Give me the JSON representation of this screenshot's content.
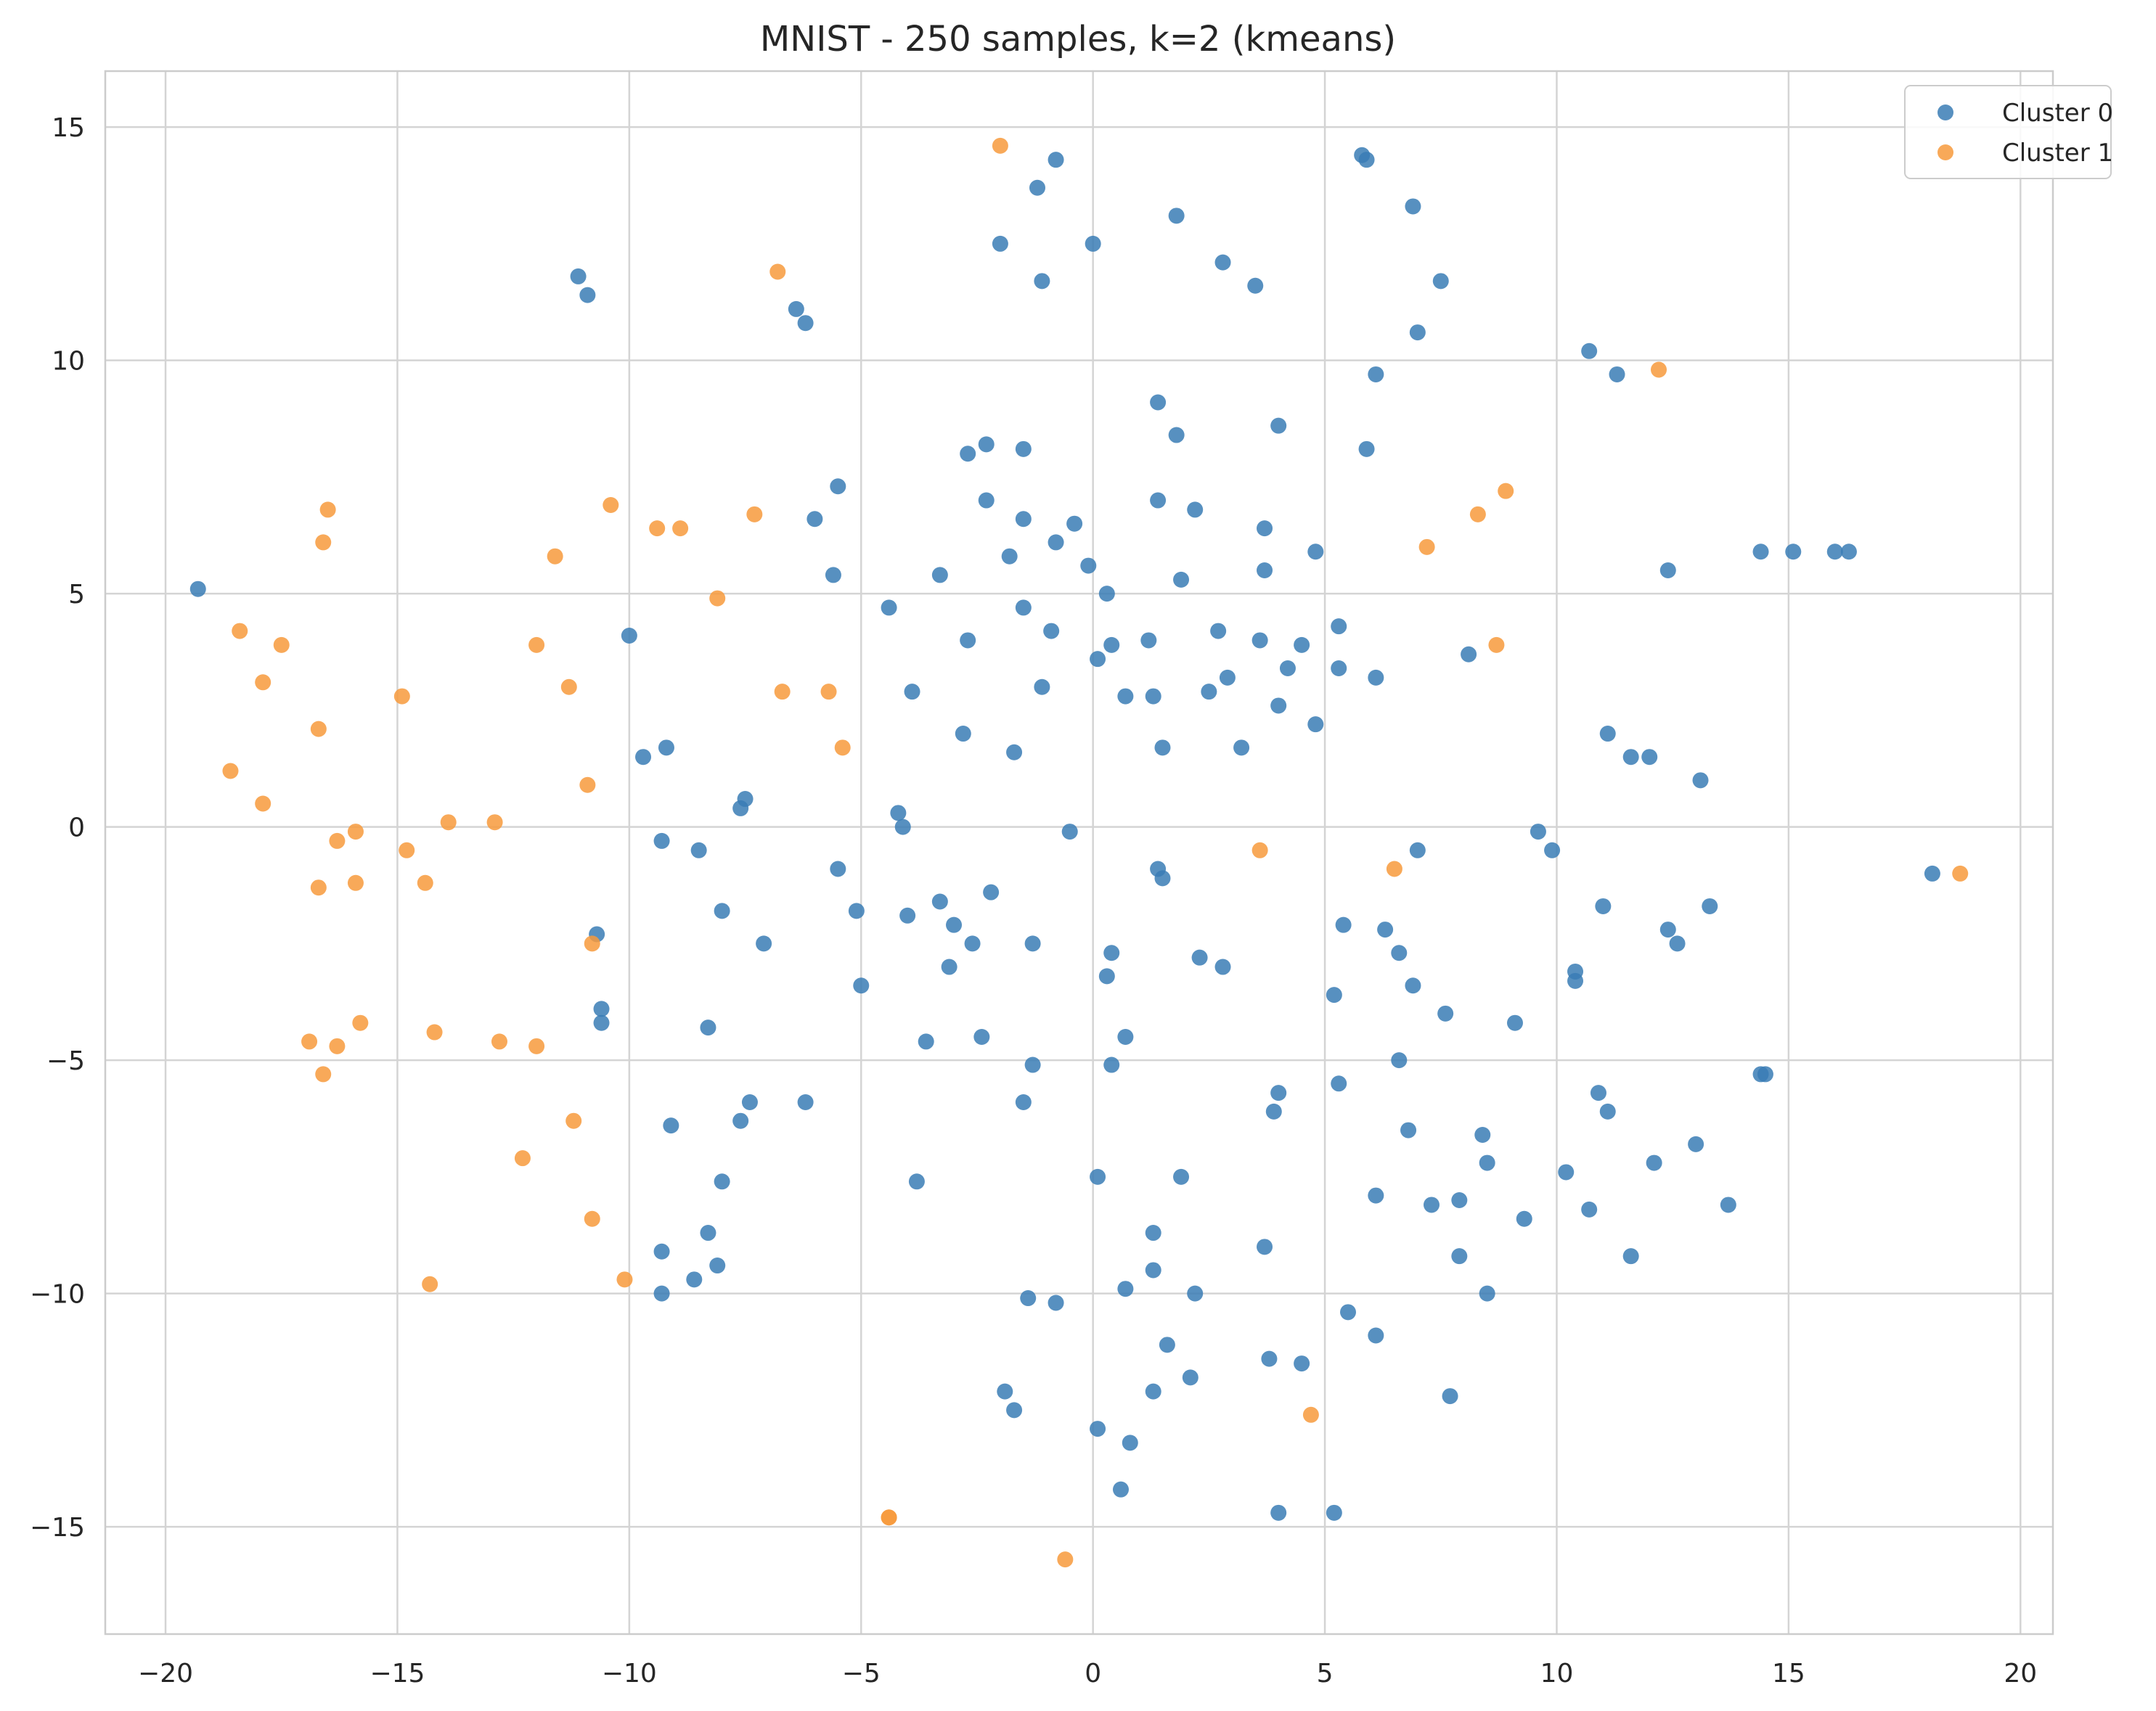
{
  "chart_data": {
    "type": "scatter",
    "title": "MNIST - 250 samples, k=2 (kmeans)",
    "xlabel": "",
    "ylabel": "",
    "xlim": [
      -21.3,
      20.7
    ],
    "ylim": [
      -17.3,
      16.2
    ],
    "xticks": [
      -20,
      -15,
      -10,
      -5,
      0,
      5,
      10,
      15,
      20
    ],
    "yticks": [
      -15,
      -10,
      -5,
      0,
      5,
      10,
      15
    ],
    "xtick_labels": [
      "−20",
      "−15",
      "−10",
      "−5",
      "0",
      "5",
      "10",
      "15",
      "20"
    ],
    "ytick_labels": [
      "−15",
      "−10",
      "−5",
      "0",
      "5",
      "10",
      "15"
    ],
    "grid": true,
    "legend_position": "top-right",
    "series": [
      {
        "name": "Cluster 0",
        "color": "#3a7db5",
        "points": [
          [
            -19.3,
            5.1
          ],
          [
            -11.1,
            11.8
          ],
          [
            -10.9,
            11.4
          ],
          [
            -10.0,
            4.1
          ],
          [
            -9.7,
            1.5
          ],
          [
            -9.2,
            1.7
          ],
          [
            -9.3,
            -0.3
          ],
          [
            -8.5,
            -0.5
          ],
          [
            -8.0,
            -1.8
          ],
          [
            -10.7,
            -2.3
          ],
          [
            -10.6,
            -3.9
          ],
          [
            -10.6,
            -4.2
          ],
          [
            -8.3,
            -4.3
          ],
          [
            -7.6,
            0.4
          ],
          [
            -7.5,
            0.6
          ],
          [
            -7.1,
            -2.5
          ],
          [
            -9.1,
            -6.4
          ],
          [
            -8.0,
            -7.6
          ],
          [
            -7.6,
            -6.3
          ],
          [
            -7.4,
            -5.9
          ],
          [
            -9.3,
            -9.1
          ],
          [
            -8.3,
            -8.7
          ],
          [
            -8.1,
            -9.4
          ],
          [
            -8.6,
            -9.7
          ],
          [
            -9.3,
            -10.0
          ],
          [
            -6.4,
            11.1
          ],
          [
            -6.2,
            10.8
          ],
          [
            -6.0,
            6.6
          ],
          [
            -5.5,
            7.3
          ],
          [
            -5.6,
            5.4
          ],
          [
            -5.5,
            -0.9
          ],
          [
            -5.1,
            -1.8
          ],
          [
            -5.0,
            -3.4
          ],
          [
            -6.2,
            -5.9
          ],
          [
            -4.4,
            4.7
          ],
          [
            -3.9,
            2.9
          ],
          [
            -4.2,
            0.3
          ],
          [
            -4.1,
            0.0
          ],
          [
            -4.0,
            -1.9
          ],
          [
            -3.6,
            -4.6
          ],
          [
            -3.8,
            -7.6
          ],
          [
            -3.3,
            5.4
          ],
          [
            -3.3,
            -1.6
          ],
          [
            -3.0,
            -2.1
          ],
          [
            -3.1,
            -3.0
          ],
          [
            -2.7,
            8.0
          ],
          [
            -2.3,
            8.2
          ],
          [
            -2.3,
            7.0
          ],
          [
            -2.7,
            4.0
          ],
          [
            -2.8,
            2.0
          ],
          [
            -2.6,
            -2.5
          ],
          [
            -2.4,
            -4.5
          ],
          [
            -2.2,
            -1.4
          ],
          [
            -2.0,
            12.5
          ],
          [
            -1.2,
            13.7
          ],
          [
            -0.8,
            14.3
          ],
          [
            -1.1,
            11.7
          ],
          [
            -1.5,
            8.1
          ],
          [
            -1.5,
            6.6
          ],
          [
            -1.8,
            5.8
          ],
          [
            -1.5,
            4.7
          ],
          [
            -1.1,
            3.0
          ],
          [
            -1.7,
            1.6
          ],
          [
            -1.3,
            -2.5
          ],
          [
            -1.3,
            -5.1
          ],
          [
            -1.5,
            -5.9
          ],
          [
            -1.4,
            -10.1
          ],
          [
            -0.8,
            -10.2
          ],
          [
            -1.9,
            -12.1
          ],
          [
            -1.7,
            -12.5
          ],
          [
            0.0,
            12.5
          ],
          [
            1.8,
            13.1
          ],
          [
            2.8,
            12.1
          ],
          [
            3.5,
            11.6
          ],
          [
            1.4,
            9.1
          ],
          [
            1.8,
            8.4
          ],
          [
            1.4,
            7.0
          ],
          [
            2.2,
            6.8
          ],
          [
            -0.8,
            6.1
          ],
          [
            -0.4,
            6.5
          ],
          [
            -0.1,
            5.6
          ],
          [
            0.3,
            5.0
          ],
          [
            -0.9,
            4.2
          ],
          [
            0.4,
            3.9
          ],
          [
            0.1,
            3.6
          ],
          [
            1.2,
            4.0
          ],
          [
            1.9,
            5.3
          ],
          [
            2.7,
            4.2
          ],
          [
            0.7,
            2.8
          ],
          [
            1.3,
            2.8
          ],
          [
            2.5,
            2.9
          ],
          [
            2.9,
            3.2
          ],
          [
            1.5,
            1.7
          ],
          [
            3.2,
            1.7
          ],
          [
            -0.5,
            -0.1
          ],
          [
            1.4,
            -0.9
          ],
          [
            1.5,
            -1.1
          ],
          [
            0.4,
            -2.7
          ],
          [
            0.3,
            -3.2
          ],
          [
            2.3,
            -2.8
          ],
          [
            2.8,
            -3.0
          ],
          [
            0.7,
            -4.5
          ],
          [
            0.4,
            -5.1
          ],
          [
            0.1,
            -7.5
          ],
          [
            1.9,
            -7.5
          ],
          [
            1.3,
            -8.7
          ],
          [
            1.3,
            -9.5
          ],
          [
            0.7,
            -9.9
          ],
          [
            2.2,
            -10.0
          ],
          [
            1.6,
            -11.1
          ],
          [
            2.1,
            -11.8
          ],
          [
            1.3,
            -12.1
          ],
          [
            0.1,
            -12.9
          ],
          [
            0.8,
            -13.2
          ],
          [
            0.6,
            -14.2
          ],
          [
            4.0,
            8.6
          ],
          [
            3.7,
            6.4
          ],
          [
            3.7,
            5.5
          ],
          [
            4.8,
            5.9
          ],
          [
            3.6,
            4.0
          ],
          [
            4.5,
            3.9
          ],
          [
            4.2,
            3.4
          ],
          [
            4.0,
            2.6
          ],
          [
            4.8,
            2.2
          ],
          [
            5.3,
            4.3
          ],
          [
            5.3,
            3.4
          ],
          [
            6.1,
            3.2
          ],
          [
            3.7,
            -9.0
          ],
          [
            3.8,
            -11.4
          ],
          [
            4.5,
            -11.5
          ],
          [
            4.0,
            -14.7
          ],
          [
            5.2,
            -14.7
          ],
          [
            4.0,
            -5.7
          ],
          [
            3.9,
            -6.1
          ],
          [
            5.3,
            -5.5
          ],
          [
            5.2,
            -3.6
          ],
          [
            5.4,
            -2.1
          ],
          [
            5.5,
            -10.4
          ],
          [
            6.1,
            -10.9
          ],
          [
            6.1,
            -7.9
          ],
          [
            5.8,
            14.4
          ],
          [
            5.9,
            14.3
          ],
          [
            6.9,
            13.3
          ],
          [
            7.5,
            11.7
          ],
          [
            7.0,
            10.6
          ],
          [
            6.1,
            9.7
          ],
          [
            5.9,
            8.1
          ],
          [
            8.1,
            3.7
          ],
          [
            7.0,
            -0.5
          ],
          [
            6.3,
            -2.2
          ],
          [
            6.6,
            -2.7
          ],
          [
            6.9,
            -3.4
          ],
          [
            7.6,
            -4.0
          ],
          [
            6.6,
            -5.0
          ],
          [
            6.8,
            -6.5
          ],
          [
            7.3,
            -8.1
          ],
          [
            7.9,
            -8.0
          ],
          [
            7.9,
            -9.2
          ],
          [
            8.4,
            -6.6
          ],
          [
            8.5,
            -7.2
          ],
          [
            9.3,
            -8.4
          ],
          [
            8.5,
            -10.0
          ],
          [
            7.7,
            -12.2
          ],
          [
            9.1,
            -4.2
          ],
          [
            9.6,
            -0.1
          ],
          [
            9.9,
            -0.5
          ],
          [
            10.4,
            -3.1
          ],
          [
            10.4,
            -3.3
          ],
          [
            10.7,
            10.2
          ],
          [
            11.3,
            9.7
          ],
          [
            11.1,
            2.0
          ],
          [
            11.6,
            1.5
          ],
          [
            12.0,
            1.5
          ],
          [
            11.0,
            -1.7
          ],
          [
            10.9,
            -5.7
          ],
          [
            11.1,
            -6.1
          ],
          [
            10.2,
            -7.4
          ],
          [
            10.7,
            -8.2
          ],
          [
            11.6,
            -9.2
          ],
          [
            12.1,
            -7.2
          ],
          [
            12.4,
            5.5
          ],
          [
            12.4,
            -2.2
          ],
          [
            12.6,
            -2.5
          ],
          [
            13.1,
            1.0
          ],
          [
            13.3,
            -1.7
          ],
          [
            13.0,
            -6.8
          ],
          [
            13.7,
            -8.1
          ],
          [
            14.4,
            5.9
          ],
          [
            15.1,
            5.9
          ],
          [
            16.0,
            5.9
          ],
          [
            16.3,
            5.9
          ],
          [
            14.4,
            -5.3
          ],
          [
            14.5,
            -5.3
          ],
          [
            18.1,
            -1.0
          ]
        ]
      },
      {
        "name": "Cluster 1",
        "color": "#f79a3c",
        "points": [
          [
            -18.6,
            1.2
          ],
          [
            -18.4,
            4.2
          ],
          [
            -17.9,
            3.1
          ],
          [
            -17.9,
            0.5
          ],
          [
            -17.5,
            3.9
          ],
          [
            -16.9,
            -4.6
          ],
          [
            -16.7,
            2.1
          ],
          [
            -16.7,
            -1.3
          ],
          [
            -16.6,
            6.1
          ],
          [
            -16.5,
            6.8
          ],
          [
            -16.6,
            -5.3
          ],
          [
            -16.3,
            -0.3
          ],
          [
            -16.3,
            -4.7
          ],
          [
            -15.9,
            -0.1
          ],
          [
            -15.9,
            -1.2
          ],
          [
            -15.8,
            -4.2
          ],
          [
            -14.9,
            2.8
          ],
          [
            -14.8,
            -0.5
          ],
          [
            -14.4,
            -1.2
          ],
          [
            -14.2,
            -4.4
          ],
          [
            -14.3,
            -9.8
          ],
          [
            -13.9,
            0.1
          ],
          [
            -12.9,
            0.1
          ],
          [
            -12.8,
            -4.6
          ],
          [
            -12.3,
            -7.1
          ],
          [
            -12.0,
            3.9
          ],
          [
            -12.0,
            -4.7
          ],
          [
            -11.6,
            5.8
          ],
          [
            -11.3,
            3.0
          ],
          [
            -11.2,
            -6.3
          ],
          [
            -10.9,
            0.9
          ],
          [
            -10.8,
            -2.5
          ],
          [
            -10.8,
            -8.4
          ],
          [
            -10.4,
            6.9
          ],
          [
            -10.1,
            -9.7
          ],
          [
            -9.4,
            6.4
          ],
          [
            -8.9,
            6.4
          ],
          [
            -8.1,
            4.9
          ],
          [
            -7.3,
            6.7
          ],
          [
            -6.8,
            11.9
          ],
          [
            -6.7,
            2.9
          ],
          [
            -5.7,
            2.9
          ],
          [
            -5.4,
            1.7
          ],
          [
            -2.0,
            14.6
          ],
          [
            -4.4,
            -14.8
          ],
          [
            -4.4,
            -14.8
          ],
          [
            -0.6,
            -15.7
          ],
          [
            3.6,
            -0.5
          ],
          [
            4.7,
            -12.6
          ],
          [
            6.5,
            -0.9
          ],
          [
            7.2,
            6.0
          ],
          [
            8.3,
            6.7
          ],
          [
            8.7,
            3.9
          ],
          [
            8.9,
            7.2
          ],
          [
            12.2,
            9.8
          ],
          [
            18.7,
            -1.0
          ]
        ]
      }
    ]
  }
}
